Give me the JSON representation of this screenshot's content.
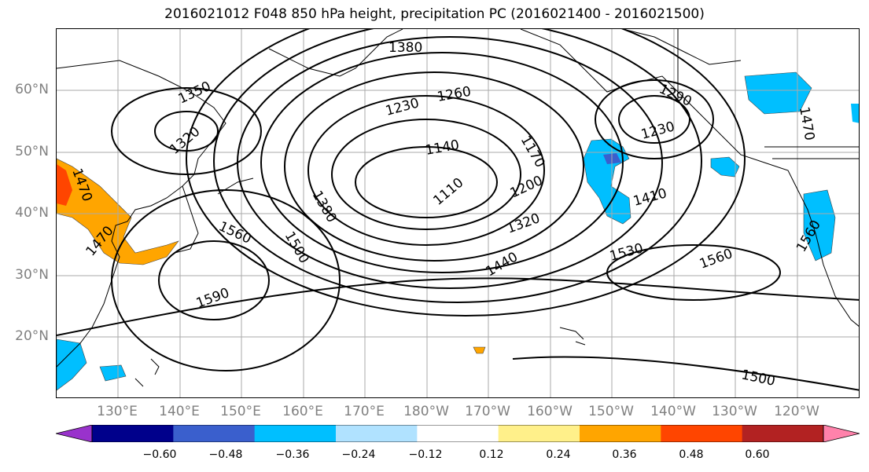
{
  "title": "2016021012 F048 850 hPa height, precipitation PC (2016021400 - 2016021500)",
  "lat_labels": [
    "60°N",
    "50°N",
    "40°N",
    "30°N",
    "20°N"
  ],
  "lon_labels": [
    "130°E",
    "140°E",
    "150°E",
    "160°E",
    "170°E",
    "180°W",
    "170°W",
    "160°W",
    "150°W",
    "140°W",
    "130°W",
    "120°W"
  ],
  "colorbar": {
    "ticks": [
      "−0.60",
      "−0.48",
      "−0.36",
      "−0.24",
      "−0.12",
      "0.12",
      "0.24",
      "0.36",
      "0.48",
      "0.60"
    ],
    "colors": [
      "#9932cc",
      "#00008b",
      "#3a5fcd",
      "#00bfff",
      "#b0e2ff",
      "#ffffff",
      "#fff08a",
      "#ffa500",
      "#ff4500",
      "#b22222",
      "#ff82ab"
    ]
  },
  "contour_labels": [
    "1380",
    "1350",
    "1320",
    "1230",
    "1260",
    "1140",
    "1170",
    "1110",
    "1200",
    "1320",
    "1290",
    "1230",
    "1410",
    "1380",
    "1500",
    "1560",
    "1470",
    "1590",
    "1440",
    "1530",
    "1560",
    "1500",
    "1470",
    "1560",
    "1470"
  ]
}
